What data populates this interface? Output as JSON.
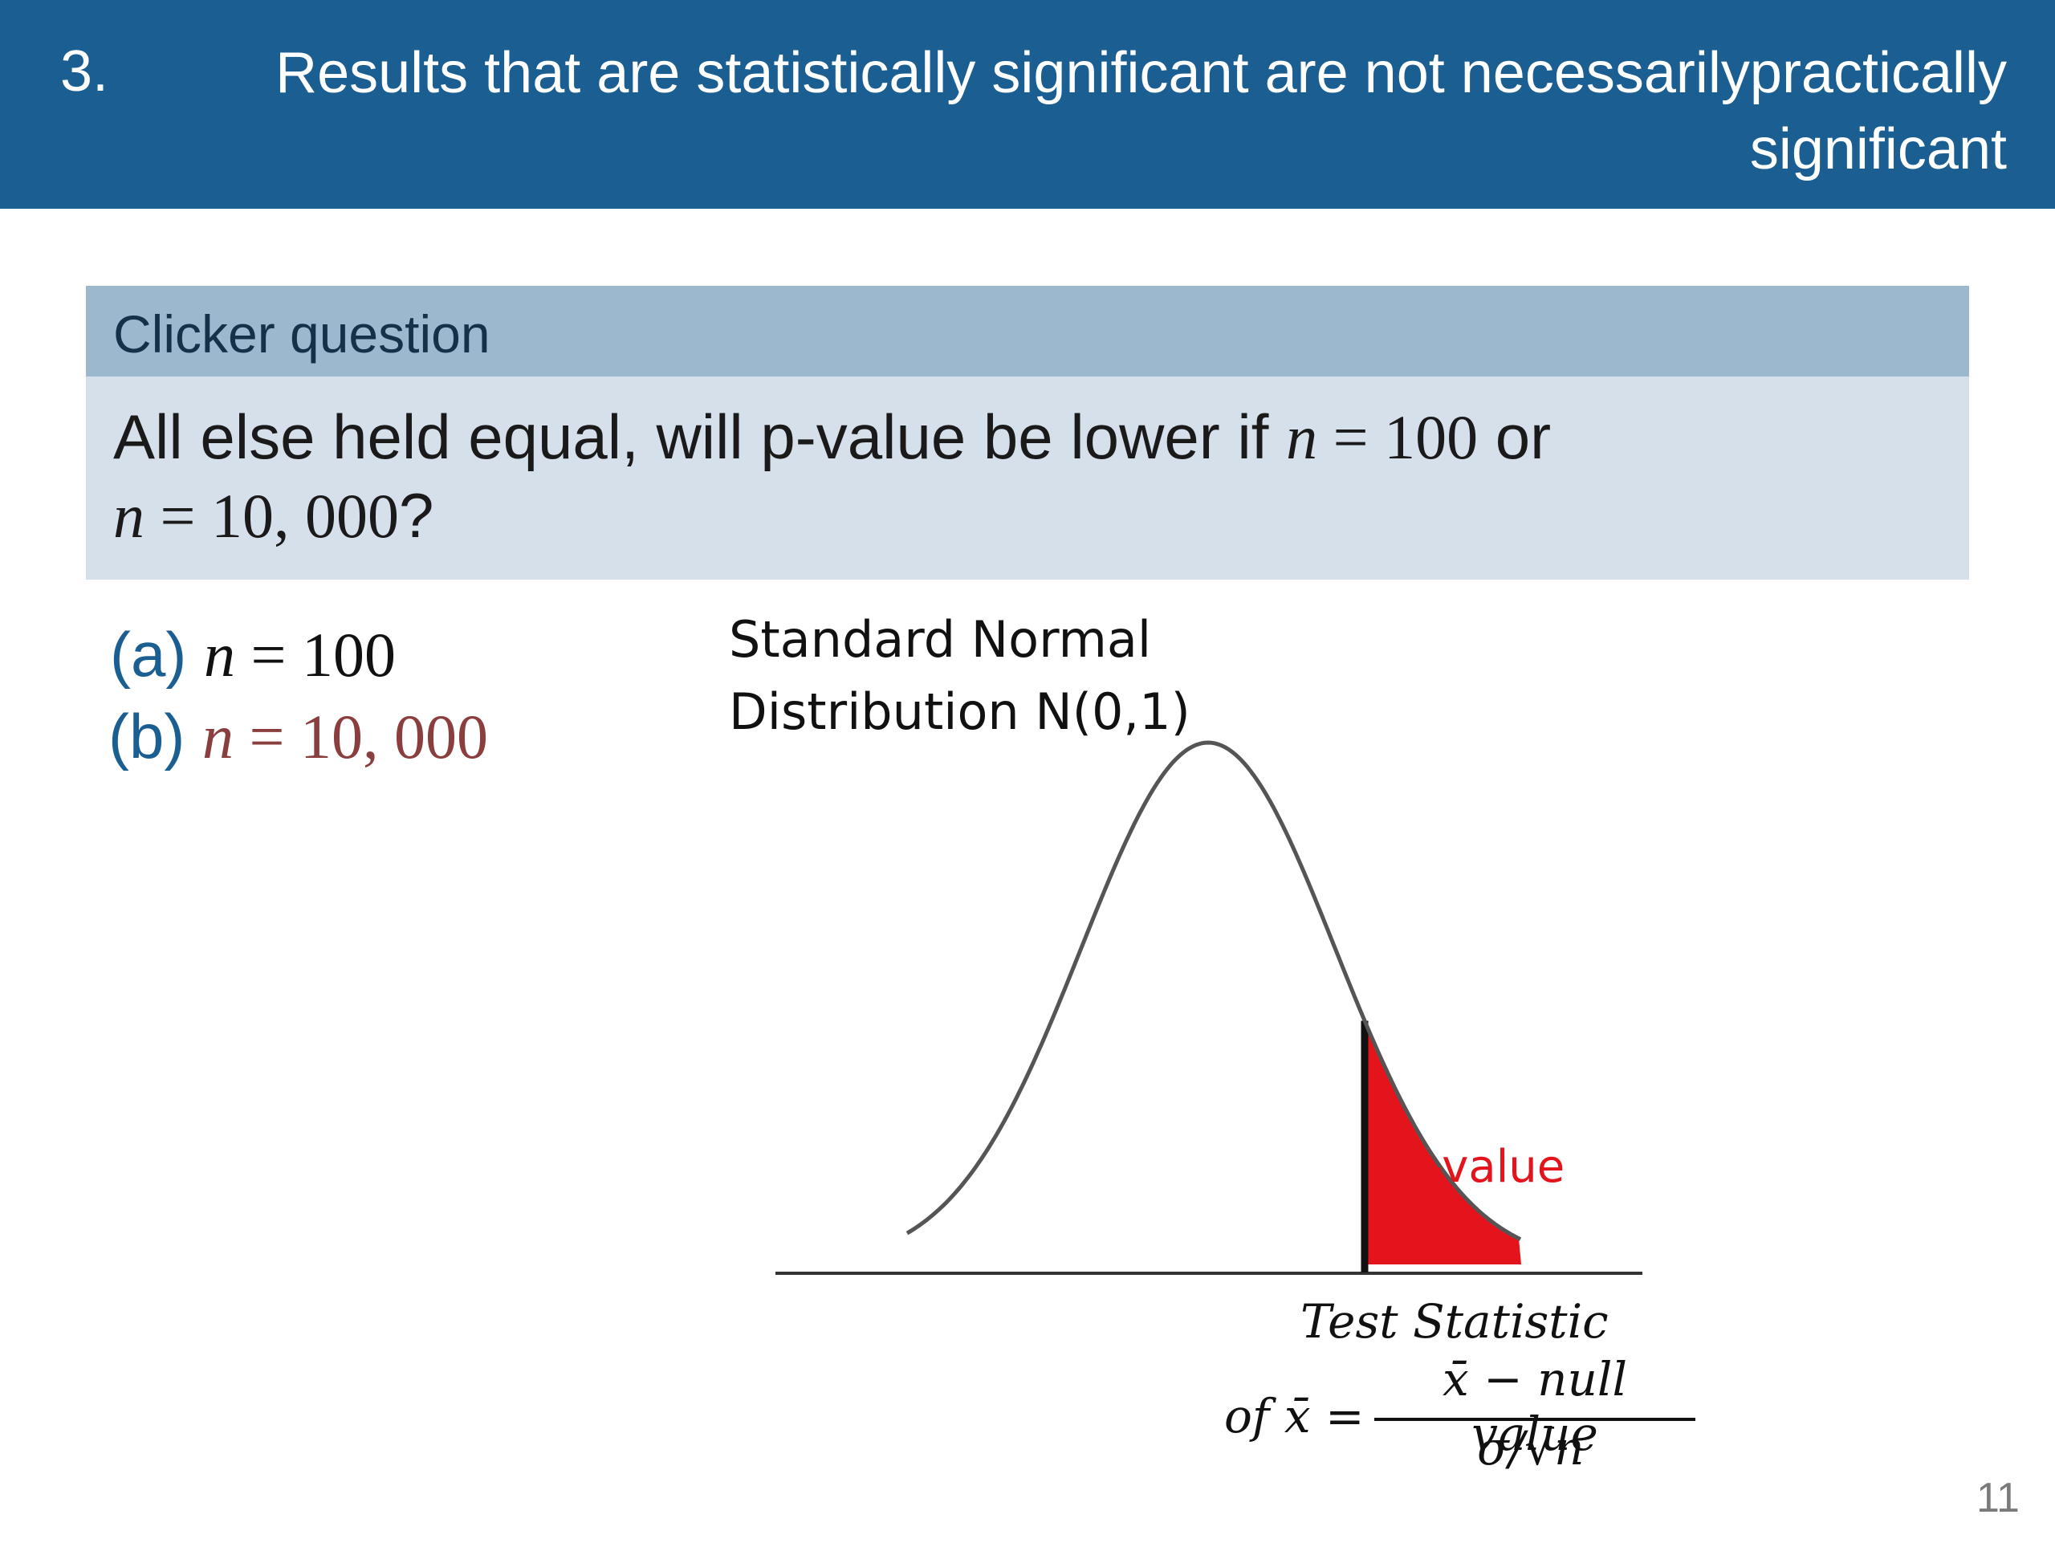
{
  "header": {
    "number": "3.",
    "title_line1": "Results that are statistically significant are not necessarilypractically",
    "title_line2": "significant"
  },
  "block": {
    "title": "Clicker question",
    "question_line1_text": "All else held equal, will p-value be lower if ",
    "question_line1_math_var": "n",
    "question_line1_math_rest": " =  100",
    "question_line1_tail": " or",
    "question_line2_math_var": "n",
    "question_line2_math_rest": " = 10, 000",
    "question_line2_tail": "?"
  },
  "options": [
    {
      "label": "(a)",
      "var": "n",
      "rest": " =  100"
    },
    {
      "label": "(b)",
      "var": "n",
      "rest": " = 10, 000"
    }
  ],
  "figure": {
    "dist_line1": "Standard Normal",
    "dist_line2": "Distribution N(0,1)",
    "pvalue_label": "p-value",
    "test_stat_label": "Test Statistic",
    "formula_left": "of x̄ =",
    "formula_numerator": "x̄ − null value",
    "formula_denominator": "σ/√n"
  },
  "colors": {
    "header_bg": "#1b5e92",
    "block_title_bg": "#9bb8cf",
    "block_body_bg": "#d5e0ea",
    "pvalue_fill": "#e3141b",
    "option_b_math": "#8b3e3e"
  },
  "page_number": "11"
}
